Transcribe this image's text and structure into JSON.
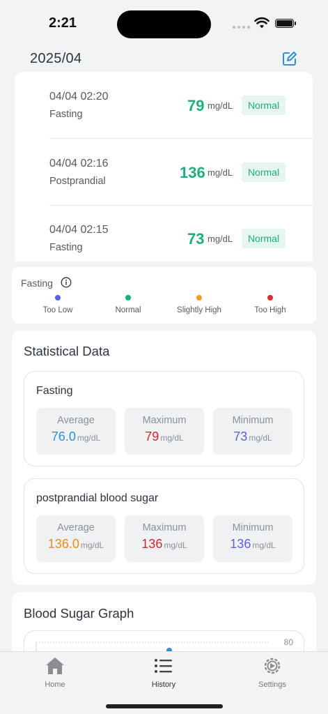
{
  "status_bar": {
    "time": "2:21"
  },
  "header": {
    "month": "2025/04",
    "edit_icon": "edit-square-icon"
  },
  "records": [
    {
      "datetime": "04/04 02:20",
      "meal": "Fasting",
      "value": "79",
      "unit": "mg/dL",
      "status": "Normal"
    },
    {
      "datetime": "04/04 02:16",
      "meal": "Postprandial",
      "value": "136",
      "unit": "mg/dL",
      "status": "Normal"
    },
    {
      "datetime": "04/04 02:15",
      "meal": "Fasting",
      "value": "73",
      "unit": "mg/dL",
      "status": "Normal"
    }
  ],
  "legend": {
    "title": "Fasting",
    "items": [
      {
        "label": "Too Low",
        "color": "#5b5fe0"
      },
      {
        "label": "Normal",
        "color": "#1ab07b"
      },
      {
        "label": "Slightly High",
        "color": "#f0a020"
      },
      {
        "label": "Too High",
        "color": "#d93030"
      }
    ]
  },
  "stats": {
    "title": "Statistical Data",
    "fasting": {
      "title": "Fasting",
      "average": {
        "label": "Average",
        "value": "76.0",
        "unit": "mg/dL",
        "color": "#2e8fd4"
      },
      "maximum": {
        "label": "Maximum",
        "value": "79",
        "unit": "mg/dL",
        "color": "#d0272e"
      },
      "minimum": {
        "label": "Minimum",
        "value": "73",
        "unit": "mg/dL",
        "color": "#5b5fe0"
      }
    },
    "postprandial": {
      "title": "postprandial blood sugar",
      "average": {
        "label": "Average",
        "value": "136.0",
        "unit": "mg/dL",
        "color": "#e98a1c"
      },
      "maximum": {
        "label": "Maximum",
        "value": "136",
        "unit": "mg/dL",
        "color": "#d0272e"
      },
      "minimum": {
        "label": "Minimum",
        "value": "136",
        "unit": "mg/dL",
        "color": "#5b5fe0"
      }
    }
  },
  "graph": {
    "title": "Blood Sugar Graph",
    "axis_tick": "80"
  },
  "tabs": [
    {
      "label": "Home",
      "icon": "home-icon"
    },
    {
      "label": "History",
      "icon": "list-icon",
      "active": true
    },
    {
      "label": "Settings",
      "icon": "gear-icon"
    }
  ]
}
